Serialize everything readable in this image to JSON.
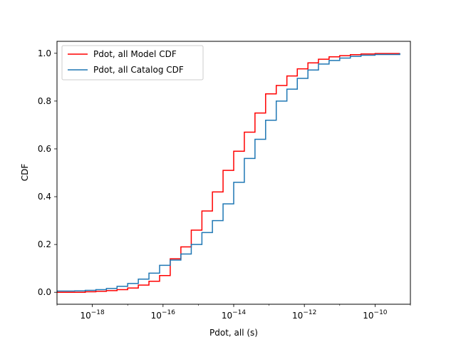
{
  "chart_data": {
    "type": "line",
    "step": true,
    "title": "",
    "xlabel": "Pdot, all (s)",
    "ylabel": "CDF",
    "xscale": "log",
    "xlim": [
      1e-19,
      1e-09
    ],
    "ylim": [
      -0.05,
      1.05
    ],
    "xticks": [
      {
        "value": 1e-18,
        "base": "10",
        "exp": "−18"
      },
      {
        "value": 1e-16,
        "base": "10",
        "exp": "−16"
      },
      {
        "value": 1e-14,
        "base": "10",
        "exp": "−14"
      },
      {
        "value": 1e-12,
        "base": "10",
        "exp": "−12"
      },
      {
        "value": 1e-10,
        "base": "10",
        "exp": "−10"
      }
    ],
    "yticks": [
      {
        "value": 0.0,
        "label": "0.0"
      },
      {
        "value": 0.2,
        "label": "0.2"
      },
      {
        "value": 0.4,
        "label": "0.4"
      },
      {
        "value": 0.6,
        "label": "0.6"
      },
      {
        "value": 0.8,
        "label": "0.8"
      },
      {
        "value": 1.0,
        "label": "1.0"
      }
    ],
    "grid": false,
    "legend_position": "top-left",
    "series": [
      {
        "name": "Pdot, all Model CDF",
        "color": "#ff0000",
        "x": [
          1e-19,
          3.16e-19,
          6.3e-19,
          1.26e-18,
          2.5e-18,
          5e-18,
          1e-17,
          2e-17,
          4e-17,
          8e-17,
          1.6e-16,
          3.2e-16,
          6.3e-16,
          1.26e-15,
          2.5e-15,
          5e-15,
          1e-14,
          2e-14,
          4e-14,
          8e-14,
          1.6e-13,
          3.2e-13,
          6.3e-13,
          1.26e-12,
          2.5e-12,
          5e-12,
          1e-11,
          2e-11,
          4e-11,
          1e-10,
          5e-10
        ],
        "y": [
          0.0,
          0.0,
          0.002,
          0.004,
          0.007,
          0.011,
          0.018,
          0.03,
          0.046,
          0.07,
          0.14,
          0.19,
          0.26,
          0.34,
          0.42,
          0.51,
          0.59,
          0.67,
          0.75,
          0.83,
          0.865,
          0.905,
          0.935,
          0.96,
          0.975,
          0.985,
          0.99,
          0.994,
          0.997,
          0.999,
          1.0
        ]
      },
      {
        "name": "Pdot, all Catalog CDF",
        "color": "#1f77b4",
        "x": [
          1e-19,
          3.16e-19,
          6.3e-19,
          1.26e-18,
          2.5e-18,
          5e-18,
          1e-17,
          2e-17,
          4e-17,
          8e-17,
          1.6e-16,
          3.2e-16,
          6.3e-16,
          1.26e-15,
          2.5e-15,
          5e-15,
          1e-14,
          2e-14,
          4e-14,
          8e-14,
          1.6e-13,
          3.2e-13,
          6.3e-13,
          1.26e-12,
          2.5e-12,
          5e-12,
          1e-11,
          2e-11,
          4e-11,
          1e-10,
          5e-10
        ],
        "y": [
          0.005,
          0.006,
          0.008,
          0.011,
          0.016,
          0.025,
          0.037,
          0.055,
          0.08,
          0.113,
          0.135,
          0.16,
          0.2,
          0.25,
          0.3,
          0.37,
          0.46,
          0.56,
          0.64,
          0.72,
          0.8,
          0.85,
          0.895,
          0.93,
          0.955,
          0.97,
          0.98,
          0.987,
          0.992,
          0.995,
          1.0
        ]
      }
    ]
  }
}
